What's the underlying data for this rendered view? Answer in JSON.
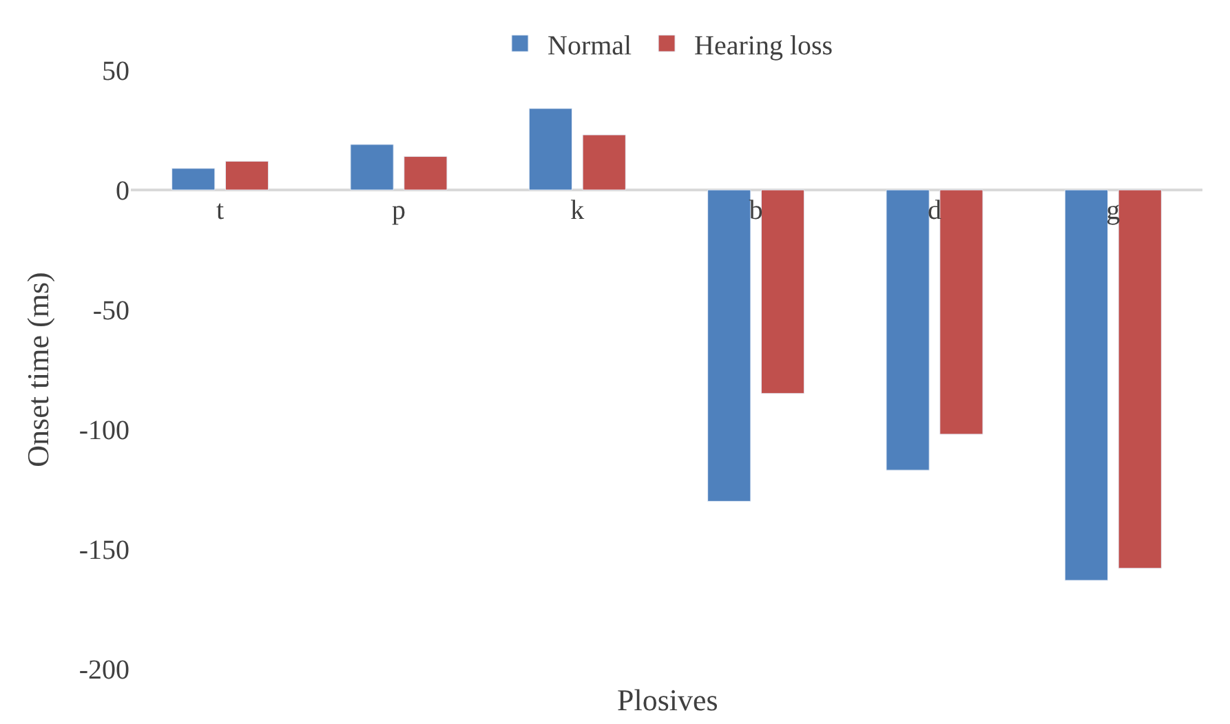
{
  "chart_data": {
    "type": "bar",
    "xlabel": "Plosives",
    "ylabel": "Onset time (ms)",
    "categories": [
      "t",
      "p",
      "k",
      "b",
      "d",
      "g"
    ],
    "series": [
      {
        "name": "Normal",
        "color": "#4f81bd",
        "values": [
          9,
          19,
          34,
          -130,
          -117,
          -163
        ]
      },
      {
        "name": "Hearing loss",
        "color": "#c0504d",
        "values": [
          12,
          14,
          23,
          -85,
          -102,
          -158
        ]
      }
    ],
    "ylim": [
      -200,
      50
    ],
    "yticks": [
      -200,
      -150,
      -100,
      -50,
      0,
      50
    ],
    "legend": "top"
  }
}
